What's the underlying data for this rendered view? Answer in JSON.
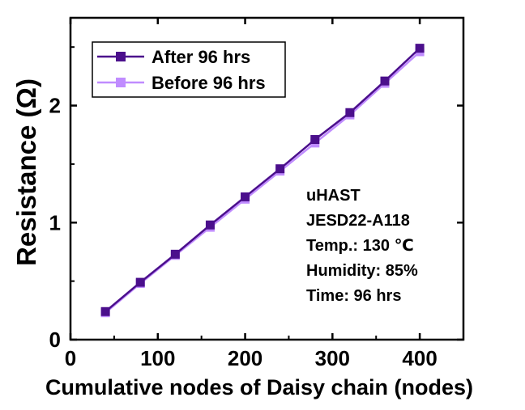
{
  "colors": {
    "after": "#4b0f8c",
    "before": "#c08cff"
  },
  "chart_data": {
    "type": "line",
    "xlabel": "Cumulative nodes of Daisy chain (nodes)",
    "ylabel": "Resistance (Ω)",
    "xlim": [
      0,
      450
    ],
    "ylim": [
      0,
      2.75
    ],
    "xticks": [
      0,
      100,
      200,
      300,
      400
    ],
    "yticks": [
      0,
      1,
      2
    ],
    "x": [
      40,
      80,
      120,
      160,
      200,
      240,
      280,
      320,
      360,
      400
    ],
    "series": [
      {
        "name": "After 96 hrs",
        "marker": "square",
        "color": "#4b0f8c",
        "values": [
          0.24,
          0.49,
          0.73,
          0.98,
          1.22,
          1.46,
          1.71,
          1.94,
          2.21,
          2.49
        ]
      },
      {
        "name": "Before 96 hrs",
        "marker": "square",
        "color": "#c08cff",
        "values": [
          0.23,
          0.48,
          0.72,
          0.96,
          1.2,
          1.44,
          1.68,
          1.92,
          2.19,
          2.46
        ]
      }
    ],
    "legend_position": "top-left",
    "grid": false,
    "annotations": [
      "uHAST",
      "JESD22-A118",
      "Temp.: 130 ℃",
      "Humidity: 85%",
      "Time: 96 hrs"
    ]
  }
}
